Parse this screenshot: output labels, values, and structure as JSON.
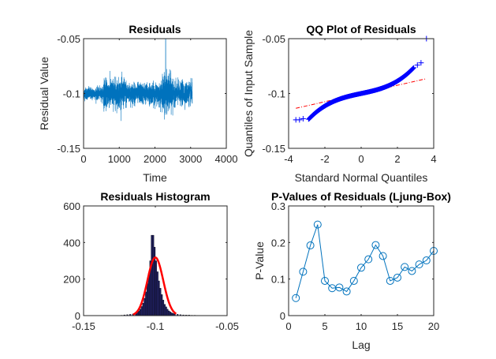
{
  "chart_data": [
    {
      "id": "residuals",
      "type": "line",
      "title": "Residuals",
      "xlabel": "Time",
      "ylabel": "Residual Value",
      "xlim": [
        0,
        4000
      ],
      "ylim": [
        -0.15,
        -0.05
      ],
      "xticks": [
        0,
        1000,
        2000,
        3000,
        4000
      ],
      "xtick_labels": [
        "0",
        "1000",
        "2000",
        "3000",
        "4000"
      ],
      "yticks": [
        -0.15,
        -0.1,
        -0.05
      ],
      "ytick_labels": [
        "-0.15",
        "-0.1",
        "-0.05"
      ],
      "color": "#0072BD",
      "n_points": 3050,
      "series_description": "noisy series centered near -0.1; low amplitude (~±0.008) for t<550, higher amplitude (~±0.02) 550-1900, spike to -0.05 near t=2300 with troughs to -0.125 around 2200-2450, moderate amplitude afterward until t≈3050",
      "segments": [
        {
          "t_start": 0,
          "t_end": 550,
          "amplitude": 0.006
        },
        {
          "t_start": 550,
          "t_end": 1200,
          "amplitude": 0.014
        },
        {
          "t_start": 1200,
          "t_end": 1900,
          "amplitude": 0.01
        },
        {
          "t_start": 1900,
          "t_end": 2200,
          "amplitude": 0.01
        },
        {
          "t_start": 2200,
          "t_end": 2500,
          "amplitude": 0.018
        },
        {
          "t_start": 2500,
          "t_end": 3050,
          "amplitude": 0.011
        }
      ],
      "peak": {
        "t": 2300,
        "value": -0.05
      },
      "min": -0.125
    },
    {
      "id": "qqplot",
      "type": "scatter",
      "title": "QQ Plot of Residuals",
      "xlabel": "Standard Normal Quantiles",
      "ylabel": "Quantiles of Input Sample",
      "xlim": [
        -4,
        4
      ],
      "ylim": [
        -0.15,
        -0.05
      ],
      "xticks": [
        -4,
        -2,
        0,
        2,
        4
      ],
      "xtick_labels": [
        "-4",
        "-2",
        "0",
        "2",
        "4"
      ],
      "yticks": [
        -0.15,
        -0.1,
        -0.05
      ],
      "ytick_labels": [
        "-0.15",
        "-0.1",
        "-0.05"
      ],
      "marker": "+",
      "marker_color": "#0000FF",
      "reference_line": {
        "x": [
          -3.6,
          3.6
        ],
        "y": [
          -0.1135,
          -0.0865
        ],
        "color": "#FF0000",
        "style": "dash-dot"
      },
      "points_x_range": [
        -3.6,
        3.6
      ],
      "extreme_points": [
        {
          "x": -3.6,
          "y": -0.124
        },
        {
          "x": -3.4,
          "y": -0.124
        },
        {
          "x": -3.2,
          "y": -0.123
        },
        {
          "x": 3.1,
          "y": -0.074
        },
        {
          "x": 3.3,
          "y": -0.072
        },
        {
          "x": 3.6,
          "y": -0.05
        }
      ]
    },
    {
      "id": "histogram",
      "type": "bar",
      "title": "Residuals Histogram",
      "xlabel": "",
      "ylabel": "",
      "xlim": [
        -0.15,
        -0.05
      ],
      "ylim": [
        0,
        600
      ],
      "xticks": [
        -0.15,
        -0.1,
        -0.05
      ],
      "xtick_labels": [
        "-0.15",
        "-0.1",
        "-0.05"
      ],
      "yticks": [
        0,
        200,
        400,
        600
      ],
      "ytick_labels": [
        "0",
        "200",
        "400",
        "600"
      ],
      "bar_color": "#1F1F5F",
      "bin_width": 0.001,
      "bin_centers": [
        -0.1235,
        -0.1215,
        -0.1195,
        -0.1175,
        -0.1155,
        -0.1135,
        -0.1125,
        -0.1115,
        -0.1105,
        -0.1095,
        -0.1085,
        -0.1075,
        -0.1065,
        -0.1055,
        -0.1045,
        -0.1035,
        -0.1025,
        -0.1015,
        -0.1005,
        -0.0995,
        -0.0985,
        -0.0975,
        -0.0965,
        -0.0955,
        -0.0945,
        -0.0935,
        -0.0925,
        -0.0915,
        -0.0905,
        -0.0895,
        -0.0885,
        -0.0875,
        -0.0865,
        -0.0845,
        -0.0825,
        -0.0805,
        -0.0785,
        -0.0765,
        -0.0745,
        -0.0725,
        -0.0505
      ],
      "counts": [
        2,
        4,
        5,
        7,
        9,
        14,
        18,
        25,
        35,
        50,
        68,
        95,
        130,
        175,
        230,
        300,
        440,
        440,
        375,
        300,
        240,
        190,
        150,
        115,
        85,
        62,
        48,
        35,
        26,
        20,
        15,
        12,
        9,
        7,
        5,
        4,
        3,
        3,
        2,
        2,
        1
      ],
      "fit_curve": {
        "type": "normal",
        "mean": -0.1,
        "peak": 318,
        "sd": 0.0055,
        "range": [
          -0.1155,
          -0.0855
        ],
        "color": "#FF0000"
      }
    },
    {
      "id": "pvalues",
      "type": "line",
      "title": "P-Values of Residuals (Ljung-Box)",
      "xlabel": "Lag",
      "ylabel": "P-Value",
      "xlim": [
        0,
        20
      ],
      "ylim": [
        0,
        0.3
      ],
      "xticks": [
        0,
        5,
        10,
        15,
        20
      ],
      "xtick_labels": [
        "0",
        "5",
        "10",
        "15",
        "20"
      ],
      "yticks": [
        0,
        0.1,
        0.2,
        0.3
      ],
      "ytick_labels": [
        "0",
        "0.1",
        "0.2",
        "0.3"
      ],
      "color": "#0072BD",
      "marker": "o",
      "x": [
        1,
        2,
        3,
        4,
        5,
        6,
        7,
        8,
        9,
        10,
        11,
        12,
        13,
        14,
        15,
        16,
        17,
        18,
        19,
        20
      ],
      "y": [
        0.048,
        0.12,
        0.192,
        0.249,
        0.095,
        0.075,
        0.077,
        0.066,
        0.095,
        0.131,
        0.154,
        0.193,
        0.163,
        0.095,
        0.104,
        0.133,
        0.122,
        0.14,
        0.151,
        0.177
      ]
    }
  ]
}
